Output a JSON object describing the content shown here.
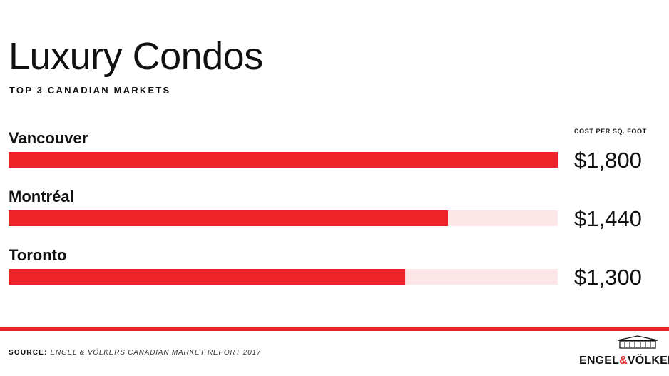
{
  "header": {
    "title": "Luxury Condos",
    "subtitle": "TOP 3 CANADIAN MARKETS"
  },
  "chart_data": {
    "type": "bar",
    "orientation": "horizontal",
    "value_header": "COST PER SQ. FOOT",
    "categories": [
      "Vancouver",
      "Montréal",
      "Toronto"
    ],
    "values": [
      1800,
      1440,
      1300
    ],
    "value_labels": [
      "$1,800",
      "$1,440",
      "$1,300"
    ],
    "xlim": [
      0,
      1800
    ],
    "grid": false,
    "legend": "none",
    "colors": {
      "bar": "#ee2229",
      "track": "#fde6e7"
    }
  },
  "footer": {
    "source_label": "SOURCE:",
    "source_text": "ENGEL & VÖLKERS CANADIAN MARKET REPORT 2017",
    "divider_color": "#ee2229",
    "logo": {
      "part1": "ENGEL",
      "amp": "&",
      "part2": "VÖLKERS",
      "icon": "house-logo-icon"
    }
  }
}
